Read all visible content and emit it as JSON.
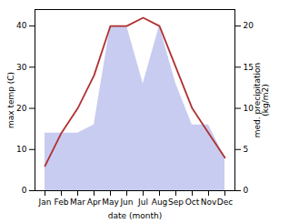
{
  "chart_data": {
    "type": "line",
    "categories": [
      "Jan",
      "Feb",
      "Mar",
      "Apr",
      "May",
      "Jun",
      "Jul",
      "Aug",
      "Sep",
      "Oct",
      "Nov",
      "Dec"
    ],
    "series": [
      {
        "type": "area",
        "axis": "y2",
        "color": "#c8ccf0",
        "values": [
          7,
          7,
          7,
          8,
          20,
          20,
          13,
          20,
          13,
          8,
          8,
          4
        ]
      },
      {
        "type": "line",
        "color": "#b03030",
        "values": [
          6,
          14,
          20,
          28,
          40,
          40,
          42,
          40,
          30,
          20,
          14,
          8
        ]
      }
    ],
    "xlabel": "date (month)",
    "ylabel": "max temp (C)",
    "y2label": "med. precipitation\n(kg/m2)",
    "ylim": [
      0,
      44
    ],
    "yticks": [
      0,
      10,
      20,
      30,
      40
    ],
    "y2lim": [
      0,
      22
    ],
    "y2ticks": [
      0,
      5,
      10,
      15,
      20
    ]
  }
}
